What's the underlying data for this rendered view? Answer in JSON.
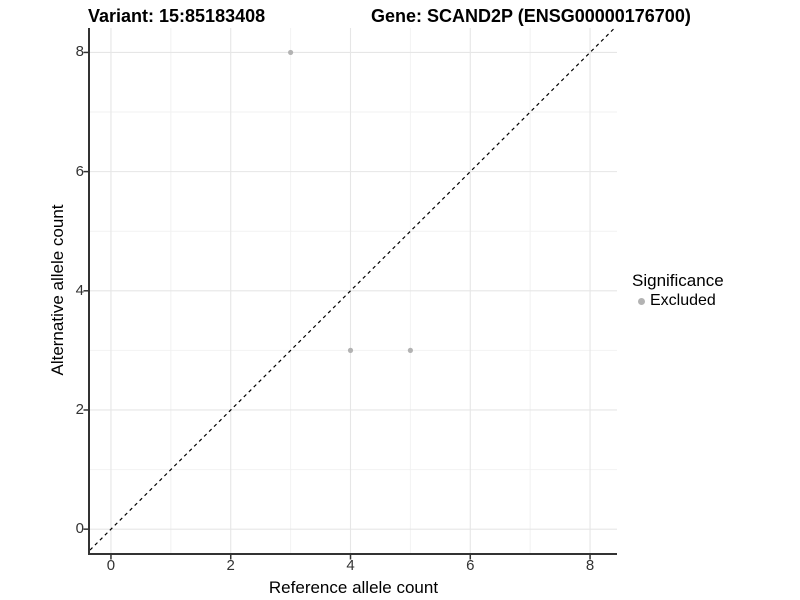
{
  "chart_data": {
    "type": "scatter",
    "title_left": "Variant: 15:85183408",
    "title_right": "Gene: SCAND2P (ENSG00000176700)",
    "xlabel": "Reference allele count",
    "ylabel": "Alternative allele count",
    "xlim": [
      -0.35,
      8.45
    ],
    "ylim": [
      -0.4,
      8.41
    ],
    "x_ticks": [
      0,
      2,
      4,
      6,
      8
    ],
    "y_ticks": [
      0,
      2,
      4,
      6,
      8
    ],
    "x_minor_ticks": [
      1,
      3,
      5,
      7
    ],
    "y_minor_ticks": [
      1,
      3,
      5,
      7
    ],
    "grid": "major-and-minor",
    "identity_line": {
      "equation": "y = x",
      "style": "dashed",
      "color": "#000000"
    },
    "series": [
      {
        "name": "Excluded",
        "color": "#b3b3b3",
        "points": [
          {
            "x": 3,
            "y": 8
          },
          {
            "x": 4,
            "y": 3
          },
          {
            "x": 5,
            "y": 3
          }
        ]
      }
    ],
    "legend": {
      "position": "right",
      "title": "Significance",
      "items": [
        {
          "label": "Excluded",
          "color": "#b3b3b3"
        }
      ]
    },
    "colors": {
      "background": "#ffffff",
      "axis_line": "#333333",
      "grid_major": "#e6e6e6",
      "grid_minor": "#f2f2f2",
      "tick_text": "#333333",
      "title_text": "#000000"
    }
  }
}
